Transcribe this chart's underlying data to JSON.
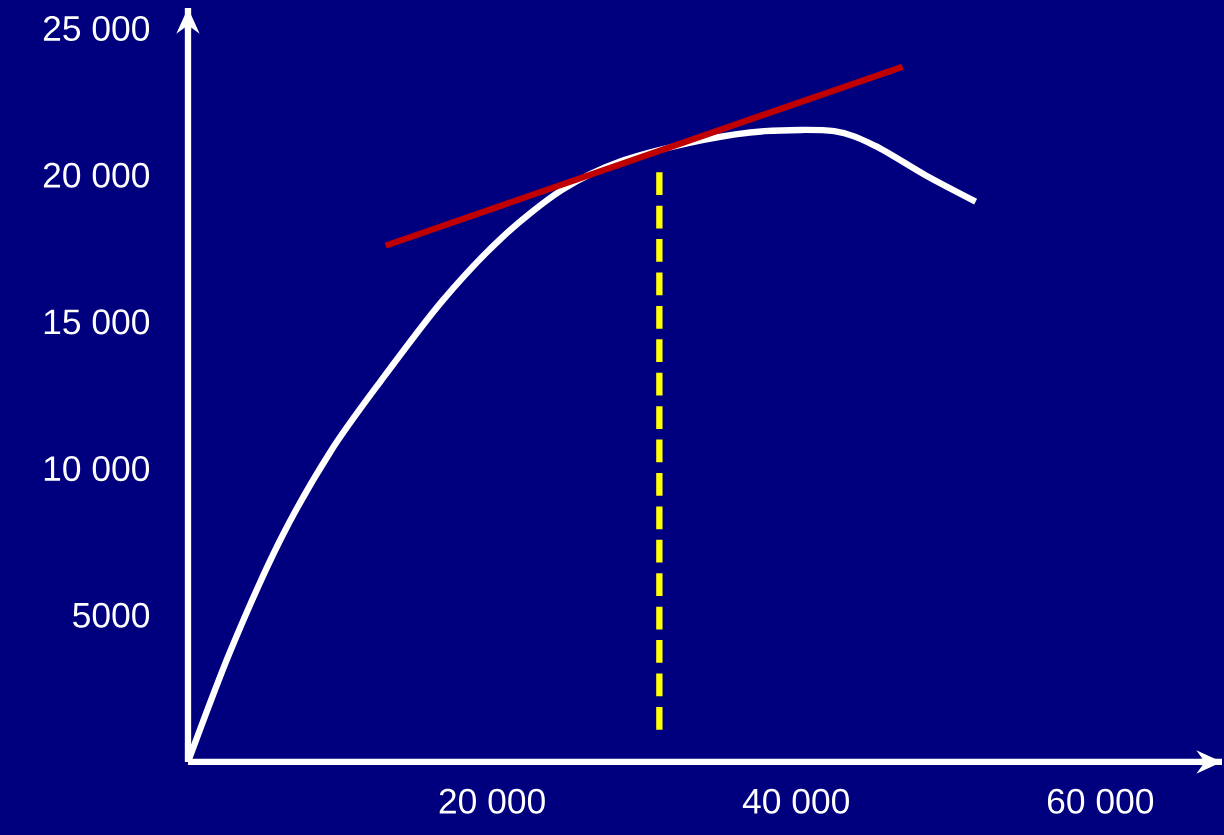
{
  "chart_data": {
    "type": "line",
    "xlim": [
      0,
      68000
    ],
    "ylim": [
      0,
      25700
    ],
    "xticks": [
      {
        "value": 20000,
        "label": "20 000"
      },
      {
        "value": 40000,
        "label": "40 000"
      },
      {
        "value": 60000,
        "label": "60 000"
      }
    ],
    "yticks": [
      {
        "value": 5000,
        "label": "5000"
      },
      {
        "value": 10000,
        "label": "10 000"
      },
      {
        "value": 15000,
        "label": "15 000"
      },
      {
        "value": 20000,
        "label": "20 000"
      },
      {
        "value": 25000,
        "label": "25 000"
      }
    ],
    "series": [
      {
        "color": "#ffffff",
        "x": [
          0,
          2800,
          6100,
          9400,
          12700,
          16700,
          20700,
          24600,
          28600,
          33900,
          37900,
          42500,
          45200,
          48500,
          51800
        ],
        "values": [
          0,
          3800,
          7600,
          10600,
          13000,
          15700,
          17900,
          19500,
          20500,
          21200,
          21500,
          21500,
          21000,
          20000,
          19100
        ]
      },
      {
        "color": "#c00000",
        "x": [
          13000,
          47000
        ],
        "values": [
          17600,
          23700
        ]
      },
      {
        "color": "#ffff00",
        "line_style": "dashed",
        "x": [
          31000,
          31000
        ],
        "values": [
          1100,
          20100
        ]
      }
    ]
  }
}
